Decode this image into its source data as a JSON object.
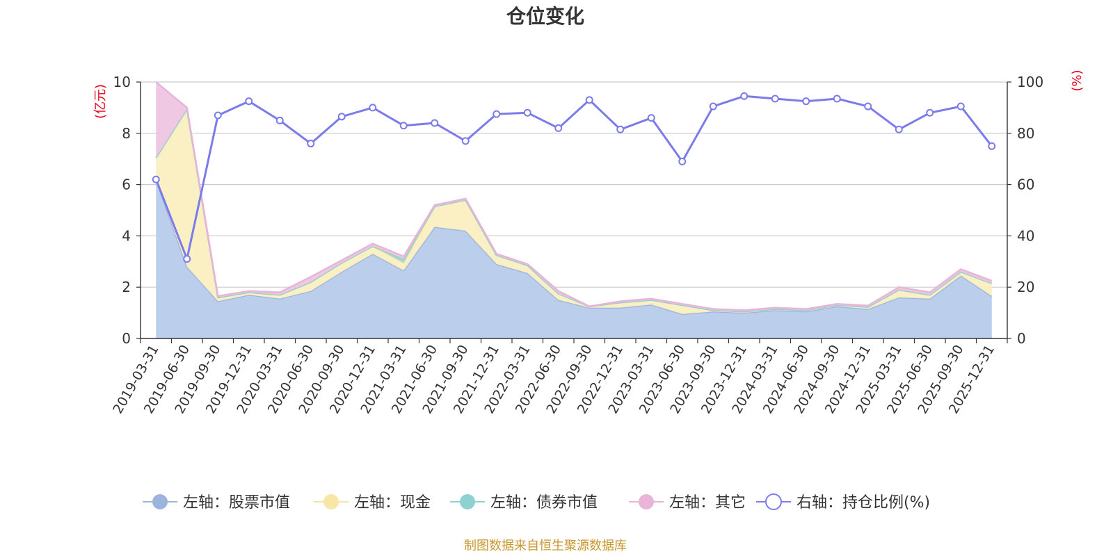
{
  "chart_data": {
    "type": "area",
    "title": "仓位变化",
    "left_axis": {
      "unit": "(亿元)",
      "ylim": [
        0,
        10
      ],
      "ticks": [
        "0",
        "2",
        "4",
        "6",
        "8",
        "10"
      ]
    },
    "right_axis": {
      "unit": "(%)",
      "ylim": [
        0,
        100
      ],
      "ticks": [
        "0",
        "20",
        "40",
        "60",
        "80",
        "100"
      ]
    },
    "categories": [
      "2019-03-31",
      "2019-06-30",
      "2019-09-30",
      "2019-12-31",
      "2020-03-31",
      "2020-06-30",
      "2020-09-30",
      "2020-12-31",
      "2021-03-31",
      "2021-06-30",
      "2021-09-30",
      "2021-12-31",
      "2022-03-31",
      "2022-06-30",
      "2022-09-30",
      "2022-12-31",
      "2023-03-31",
      "2023-06-30",
      "2023-09-30",
      "2023-12-31",
      "2024-03-31",
      "2024-06-30",
      "2024-09-30",
      "2024-12-31",
      "2025-03-31",
      "2025-06-30",
      "2025-09-30",
      "2025-12-31"
    ],
    "series": [
      {
        "name": "左轴：股票市值",
        "axis": "left",
        "kind": "stacked-area",
        "color": "#9BB5DF",
        "fill": "#B7CCEB",
        "values": [
          6.2,
          2.8,
          1.45,
          1.7,
          1.55,
          1.85,
          2.6,
          3.3,
          2.65,
          4.35,
          4.2,
          2.9,
          2.55,
          1.5,
          1.2,
          1.2,
          1.32,
          0.95,
          1.05,
          1.0,
          1.1,
          1.05,
          1.25,
          1.15,
          1.6,
          1.55,
          2.45,
          1.65
        ]
      },
      {
        "name": "左轴：现金",
        "axis": "left",
        "kind": "stacked-area",
        "color": "#F7E6A5",
        "fill": "#FBEFC0",
        "values": [
          0.85,
          6.15,
          0.15,
          0.1,
          0.15,
          0.35,
          0.35,
          0.3,
          0.3,
          0.8,
          1.2,
          0.35,
          0.3,
          0.25,
          0.05,
          0.2,
          0.18,
          0.35,
          0.05,
          0.05,
          0.05,
          0.05,
          0.05,
          0.08,
          0.3,
          0.15,
          0.15,
          0.5
        ]
      },
      {
        "name": "左轴：债券市值",
        "axis": "left",
        "kind": "stacked-area",
        "color": "#8FD0D0",
        "fill": "#9ED6D4",
        "values": [
          0.0,
          0.0,
          0.0,
          0.0,
          0.0,
          0.0,
          0.0,
          0.0,
          0.15,
          0.0,
          0.0,
          0.0,
          0.0,
          0.0,
          0.0,
          0.0,
          0.0,
          0.0,
          0.0,
          0.0,
          0.0,
          0.0,
          0.0,
          0.0,
          0.0,
          0.0,
          0.0,
          0.0
        ]
      },
      {
        "name": "左轴：其它",
        "axis": "left",
        "kind": "stacked-area",
        "color": "#E8B4D8",
        "fill": "#EEC6E2",
        "values": [
          2.95,
          0.05,
          0.05,
          0.05,
          0.1,
          0.2,
          0.1,
          0.1,
          0.1,
          0.05,
          0.05,
          0.05,
          0.05,
          0.1,
          0.0,
          0.05,
          0.05,
          0.05,
          0.05,
          0.05,
          0.05,
          0.05,
          0.05,
          0.05,
          0.1,
          0.1,
          0.1,
          0.1
        ]
      },
      {
        "name": "右轴：持仓比例(%)",
        "axis": "right",
        "kind": "line",
        "color": "#7B7BEB",
        "values": [
          62,
          31,
          87,
          92.5,
          85,
          76,
          86.5,
          90,
          83,
          84,
          77,
          87.5,
          88,
          82,
          93,
          81.5,
          86,
          69,
          90.5,
          94.5,
          93.5,
          92.5,
          93.5,
          90.5,
          81.5,
          88,
          90.5,
          75
        ]
      }
    ],
    "legend": {
      "position": "bottom",
      "labels": [
        "左轴：股票市值",
        "左轴：现金",
        "左轴：债券市值",
        "左轴：其它",
        "右轴：持仓比例(%)"
      ]
    },
    "grid": true
  },
  "footer": {
    "source": "制图数据来自恒生聚源数据库"
  },
  "colors": {
    "axis_unit": "#E8001C",
    "footer": "#C8962D",
    "grid": "#CCCCCC",
    "axis_line": "#333333"
  }
}
